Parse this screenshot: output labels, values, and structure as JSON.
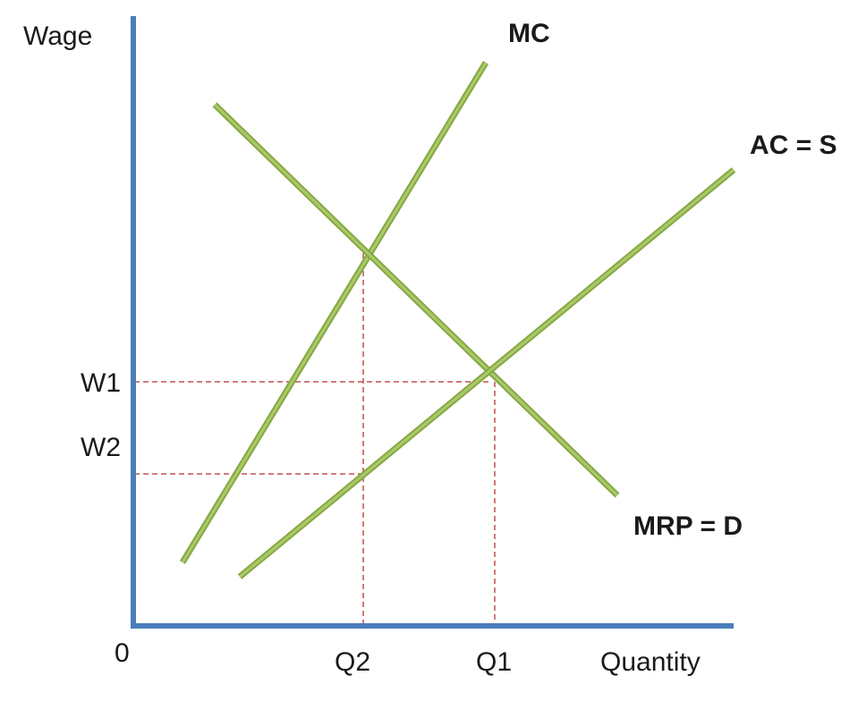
{
  "axes": {
    "y_label": "Wage",
    "x_label": "Quantity",
    "origin_label": "0",
    "color": "#4a7ebb"
  },
  "curves": [
    {
      "key": "mc",
      "label": "MC",
      "color": "#9bbb59"
    },
    {
      "key": "ac",
      "label": "AC = S",
      "color": "#9bbb59"
    },
    {
      "key": "mrp",
      "label": "MRP = D",
      "color": "#9bbb59"
    }
  ],
  "levels": {
    "w1": "W1",
    "w2": "W2",
    "q1": "Q1",
    "q2": "Q2"
  },
  "guide_color": "#c0504d"
}
